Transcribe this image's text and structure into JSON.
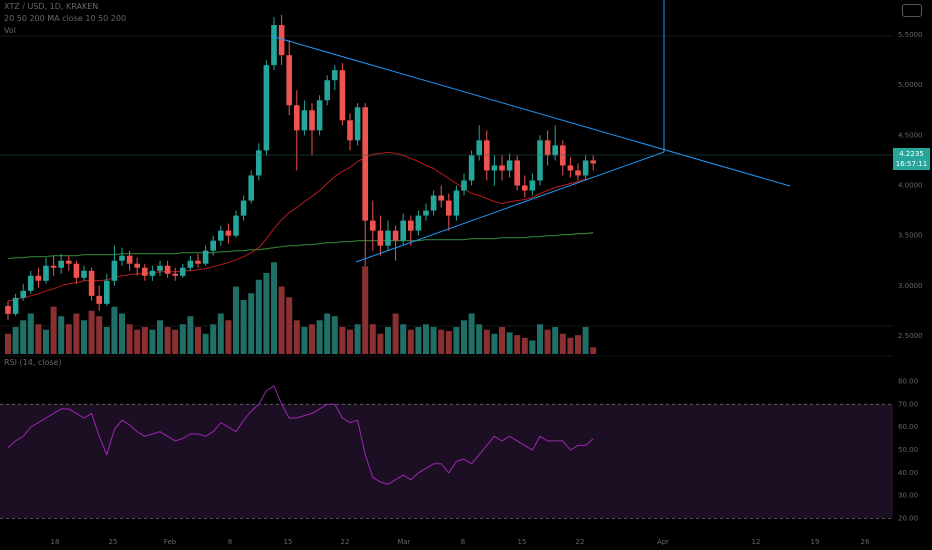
{
  "header": {
    "symbol_line": "XTZ / USD, 1D, KRAKEN",
    "ma_line": "20 50 200 MA close 10 50 200",
    "vol_line": "Vol"
  },
  "price_badge": {
    "price": "4.2235",
    "countdown": "16:57:11"
  },
  "rsi_header": "RSI (14, close)",
  "colors": {
    "up": "#26a69a",
    "down": "#ef5350",
    "ma_red": "#b71c1c",
    "ma_green": "#2e7d32",
    "trendline": "#2196f3",
    "rsi_line": "#9c27b0",
    "rsi_band": "#1c0f24"
  },
  "chart_data": {
    "type": "candlestick",
    "price_axis": {
      "ticks": [
        2.5,
        3.0,
        3.5,
        4.0,
        4.5,
        5.0,
        5.5
      ],
      "labels": [
        "2.5000",
        "3.0000",
        "3.5000",
        "4.0000",
        "4.5000",
        "5.0000",
        "5.5000"
      ],
      "range": [
        2.3,
        5.75
      ]
    },
    "rsi_axis": {
      "ticks": [
        20,
        30,
        40,
        50,
        60,
        70,
        80
      ],
      "labels": [
        "20.00",
        "30.00",
        "40.00",
        "50.00",
        "60.00",
        "70.00",
        "80.00"
      ],
      "range": [
        15,
        85
      ],
      "upper": 70,
      "lower": 20
    },
    "x_labels": [
      "18",
      "25",
      "Feb",
      "8",
      "15",
      "22",
      "Mar",
      "8",
      "15",
      "22",
      "Apr",
      "12",
      "19",
      "26"
    ],
    "candles": [
      [
        2.8,
        2.72,
        2.85,
        2.66
      ],
      [
        2.72,
        2.88,
        2.92,
        2.7
      ],
      [
        2.88,
        2.95,
        3.02,
        2.85
      ],
      [
        2.95,
        3.1,
        3.15,
        2.92
      ],
      [
        3.1,
        3.05,
        3.18,
        2.98
      ],
      [
        3.05,
        3.2,
        3.28,
        3.02
      ],
      [
        3.2,
        3.18,
        3.3,
        3.1
      ],
      [
        3.18,
        3.25,
        3.32,
        3.12
      ],
      [
        3.25,
        3.22,
        3.3,
        3.15
      ],
      [
        3.22,
        3.08,
        3.25,
        3.02
      ],
      [
        3.08,
        3.15,
        3.2,
        3.05
      ],
      [
        3.15,
        2.9,
        3.18,
        2.85
      ],
      [
        2.9,
        2.82,
        3.0,
        2.75
      ],
      [
        2.82,
        3.05,
        3.12,
        2.8
      ],
      [
        3.05,
        3.25,
        3.4,
        3.0
      ],
      [
        3.25,
        3.3,
        3.38,
        3.2
      ],
      [
        3.3,
        3.22,
        3.35,
        3.15
      ],
      [
        3.22,
        3.18,
        3.28,
        3.1
      ],
      [
        3.18,
        3.1,
        3.22,
        3.05
      ],
      [
        3.1,
        3.15,
        3.2,
        3.05
      ],
      [
        3.15,
        3.2,
        3.25,
        3.1
      ],
      [
        3.2,
        3.12,
        3.25,
        3.08
      ],
      [
        3.12,
        3.1,
        3.18,
        3.05
      ],
      [
        3.1,
        3.18,
        3.22,
        3.08
      ],
      [
        3.18,
        3.25,
        3.3,
        3.15
      ],
      [
        3.25,
        3.22,
        3.32,
        3.18
      ],
      [
        3.22,
        3.35,
        3.4,
        3.2
      ],
      [
        3.35,
        3.45,
        3.5,
        3.3
      ],
      [
        3.45,
        3.55,
        3.6,
        3.4
      ],
      [
        3.55,
        3.5,
        3.62,
        3.42
      ],
      [
        3.5,
        3.7,
        3.75,
        3.48
      ],
      [
        3.7,
        3.85,
        3.9,
        3.65
      ],
      [
        3.85,
        4.1,
        4.15,
        3.82
      ],
      [
        4.1,
        4.35,
        4.42,
        4.05
      ],
      [
        4.35,
        5.2,
        5.25,
        4.3
      ],
      [
        5.2,
        5.6,
        5.68,
        5.15
      ],
      [
        5.6,
        5.3,
        5.7,
        5.2
      ],
      [
        5.3,
        4.8,
        5.45,
        4.7
      ],
      [
        4.8,
        4.55,
        4.95,
        4.15
      ],
      [
        4.55,
        4.75,
        4.85,
        4.5
      ],
      [
        4.75,
        4.55,
        4.82,
        4.3
      ],
      [
        4.55,
        4.85,
        4.9,
        4.5
      ],
      [
        4.85,
        5.05,
        5.1,
        4.8
      ],
      [
        5.05,
        5.15,
        5.2,
        4.95
      ],
      [
        5.15,
        4.65,
        5.22,
        4.6
      ],
      [
        4.65,
        4.45,
        4.72,
        4.35
      ],
      [
        4.45,
        4.78,
        4.82,
        4.4
      ],
      [
        4.78,
        3.65,
        4.82,
        3.2
      ],
      [
        3.65,
        3.55,
        3.85,
        3.35
      ],
      [
        3.55,
        3.4,
        3.7,
        3.3
      ],
      [
        3.4,
        3.55,
        3.65,
        3.35
      ],
      [
        3.55,
        3.45,
        3.6,
        3.25
      ],
      [
        3.45,
        3.65,
        3.72,
        3.4
      ],
      [
        3.65,
        3.55,
        3.7,
        3.4
      ],
      [
        3.55,
        3.7,
        3.75,
        3.5
      ],
      [
        3.7,
        3.75,
        3.82,
        3.65
      ],
      [
        3.75,
        3.9,
        3.95,
        3.7
      ],
      [
        3.9,
        3.85,
        4.0,
        3.78
      ],
      [
        3.85,
        3.7,
        3.92,
        3.55
      ],
      [
        3.7,
        3.95,
        4.0,
        3.65
      ],
      [
        3.95,
        4.05,
        4.12,
        3.9
      ],
      [
        4.05,
        4.3,
        4.35,
        4.0
      ],
      [
        4.3,
        4.45,
        4.6,
        4.25
      ],
      [
        4.45,
        4.15,
        4.55,
        4.05
      ],
      [
        4.15,
        4.2,
        4.3,
        4.0
      ],
      [
        4.2,
        4.15,
        4.3,
        4.05
      ],
      [
        4.15,
        4.25,
        4.32,
        4.08
      ],
      [
        4.25,
        4.0,
        4.3,
        3.95
      ],
      [
        4.0,
        3.95,
        4.1,
        3.88
      ],
      [
        3.95,
        4.05,
        4.12,
        3.9
      ],
      [
        4.05,
        4.45,
        4.5,
        4.0
      ],
      [
        4.45,
        4.3,
        4.55,
        4.2
      ],
      [
        4.3,
        4.4,
        4.6,
        4.25
      ],
      [
        4.4,
        4.2,
        4.45,
        4.1
      ],
      [
        4.2,
        4.15,
        4.28,
        4.08
      ],
      [
        4.15,
        4.1,
        4.22,
        4.05
      ],
      [
        4.1,
        4.25,
        4.3,
        4.05
      ],
      [
        4.25,
        4.22,
        4.3,
        4.15
      ]
    ],
    "ma_short": [
      2.85,
      2.86,
      2.88,
      2.9,
      2.92,
      2.95,
      2.97,
      3.0,
      3.02,
      3.03,
      3.05,
      3.05,
      3.05,
      3.06,
      3.08,
      3.1,
      3.11,
      3.12,
      3.12,
      3.13,
      3.14,
      3.14,
      3.14,
      3.15,
      3.15,
      3.16,
      3.17,
      3.19,
      3.21,
      3.23,
      3.26,
      3.29,
      3.33,
      3.38,
      3.47,
      3.57,
      3.66,
      3.73,
      3.78,
      3.84,
      3.89,
      3.95,
      4.02,
      4.09,
      4.14,
      4.18,
      4.24,
      4.28,
      4.31,
      4.32,
      4.33,
      4.32,
      4.3,
      4.27,
      4.24,
      4.2,
      4.17,
      4.12,
      4.07,
      4.02,
      3.97,
      3.92,
      3.9,
      3.87,
      3.84,
      3.82,
      3.84,
      3.85,
      3.86,
      3.88,
      3.92,
      3.95,
      3.98,
      4.0,
      4.02,
      4.04,
      4.06,
      4.08
    ],
    "ma_long": [
      3.27,
      3.28,
      3.28,
      3.29,
      3.29,
      3.29,
      3.3,
      3.3,
      3.3,
      3.3,
      3.31,
      3.31,
      3.31,
      3.31,
      3.31,
      3.32,
      3.32,
      3.32,
      3.32,
      3.32,
      3.32,
      3.32,
      3.32,
      3.33,
      3.33,
      3.33,
      3.33,
      3.33,
      3.34,
      3.34,
      3.35,
      3.35,
      3.36,
      3.36,
      3.37,
      3.38,
      3.39,
      3.4,
      3.4,
      3.41,
      3.41,
      3.42,
      3.43,
      3.43,
      3.44,
      3.44,
      3.45,
      3.45,
      3.45,
      3.45,
      3.45,
      3.45,
      3.45,
      3.45,
      3.45,
      3.46,
      3.46,
      3.46,
      3.46,
      3.46,
      3.46,
      3.47,
      3.47,
      3.47,
      3.47,
      3.48,
      3.48,
      3.48,
      3.48,
      3.49,
      3.49,
      3.5,
      3.5,
      3.51,
      3.51,
      3.52,
      3.52,
      3.53
    ],
    "volume": [
      0.15,
      0.2,
      0.25,
      0.3,
      0.22,
      0.18,
      0.35,
      0.28,
      0.22,
      0.3,
      0.25,
      0.32,
      0.28,
      0.2,
      0.35,
      0.3,
      0.22,
      0.18,
      0.2,
      0.18,
      0.25,
      0.2,
      0.18,
      0.22,
      0.28,
      0.2,
      0.15,
      0.22,
      0.3,
      0.25,
      0.5,
      0.4,
      0.45,
      0.55,
      0.6,
      0.68,
      0.5,
      0.42,
      0.25,
      0.2,
      0.22,
      0.25,
      0.3,
      0.28,
      0.2,
      0.18,
      0.22,
      0.65,
      0.22,
      0.15,
      0.2,
      0.3,
      0.22,
      0.18,
      0.2,
      0.22,
      0.2,
      0.18,
      0.17,
      0.2,
      0.25,
      0.3,
      0.22,
      0.18,
      0.15,
      0.2,
      0.16,
      0.14,
      0.12,
      0.1,
      0.22,
      0.18,
      0.2,
      0.15,
      0.12,
      0.14,
      0.2,
      0.05
    ],
    "rsi": [
      51,
      54,
      56,
      60,
      62,
      64,
      66,
      68,
      68,
      66,
      64,
      66,
      56,
      48,
      59,
      63,
      61,
      58,
      56,
      57,
      58,
      56,
      54,
      55,
      57,
      57,
      56,
      58,
      62,
      60,
      58,
      63,
      67,
      70,
      76,
      78,
      70,
      64,
      64,
      65,
      66,
      68,
      70,
      70,
      64,
      62,
      63,
      48,
      38,
      36,
      35,
      37,
      39,
      37,
      40,
      42,
      44,
      44,
      40,
      45,
      46,
      44,
      48,
      52,
      56,
      54,
      56,
      54,
      52,
      50,
      56,
      54,
      54,
      54,
      50,
      52,
      52,
      55
    ]
  }
}
